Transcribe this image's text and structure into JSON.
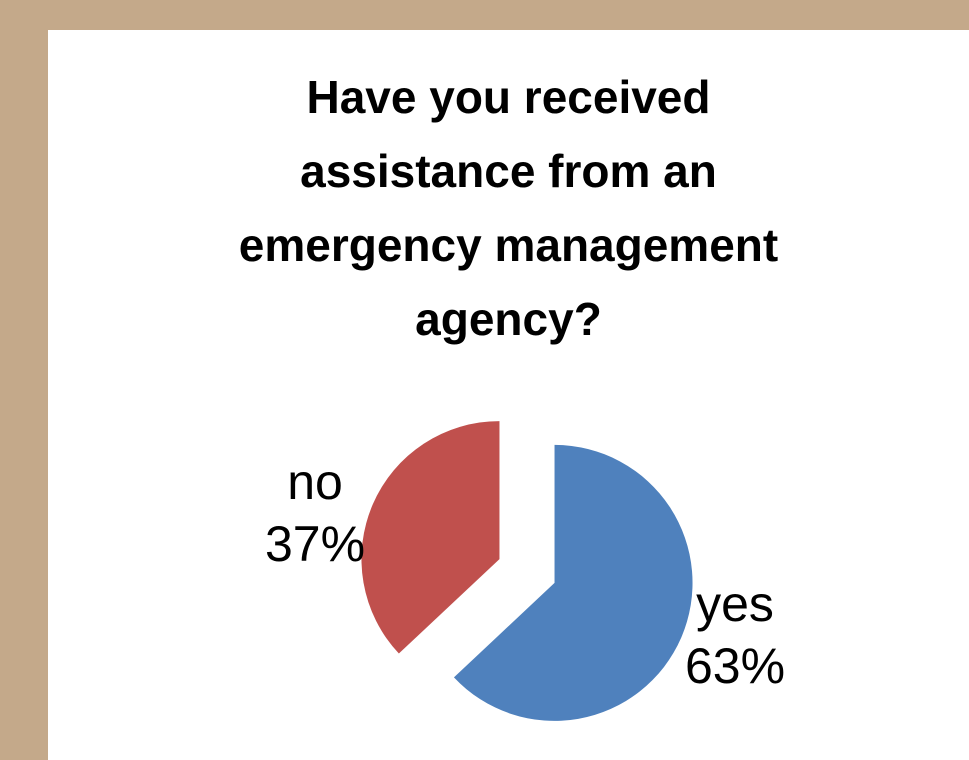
{
  "chart_data": {
    "type": "pie",
    "title": "Have you received assistance from an emergency management agency?",
    "title_lines": [
      "Have you received",
      "assistance from an",
      "emergency management",
      "agency?"
    ],
    "exploded": true,
    "legend": "none",
    "slices": [
      {
        "category": "yes",
        "value": 63,
        "percent_label": "63%",
        "color": "#4F81BD"
      },
      {
        "category": "no",
        "value": 37,
        "percent_label": "37%",
        "color": "#C0504D"
      }
    ]
  },
  "colors": {
    "background": "#C4A98A",
    "panel": "#FFFFFF"
  }
}
